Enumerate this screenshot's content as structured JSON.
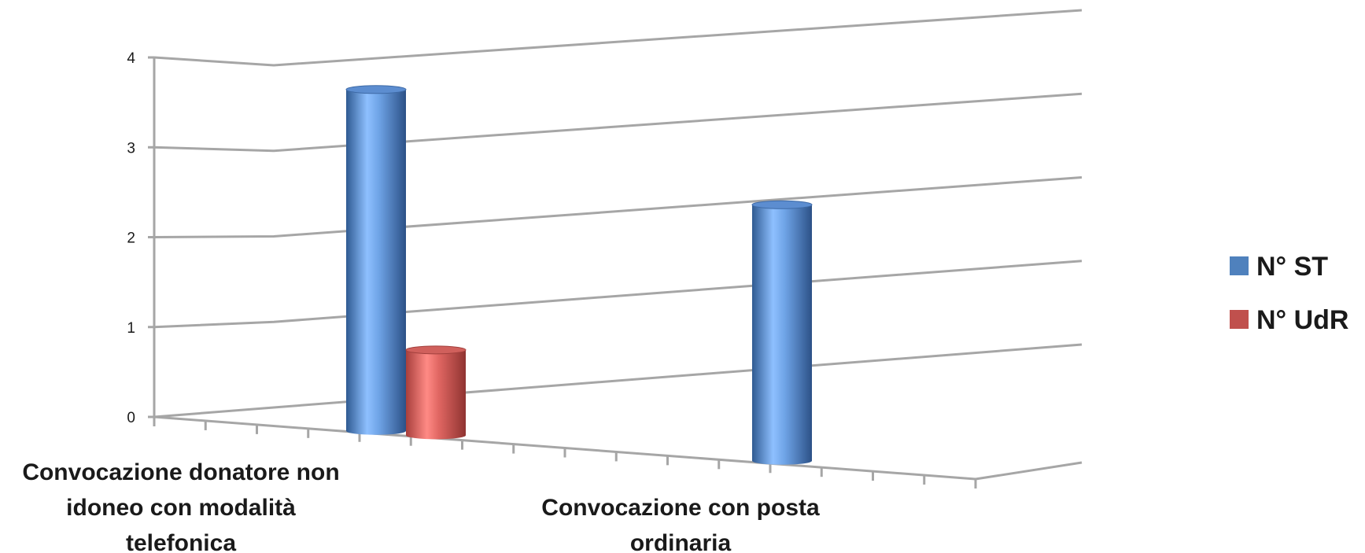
{
  "chart_data": {
    "type": "bar",
    "style": "3d-cylinder",
    "categories": [
      [
        "Convocazione donatore non",
        "idoneo con modalità",
        "telefonica"
      ],
      [
        "Convocazione con posta",
        "ordinaria"
      ]
    ],
    "series": [
      {
        "name": "N° ST",
        "values": [
          4,
          3
        ],
        "color": "#4f81bd"
      },
      {
        "name": "N° UdR",
        "values": [
          1,
          0
        ],
        "color": "#c0504d"
      }
    ],
    "yticks": [
      "0",
      "1",
      "2",
      "3",
      "4"
    ],
    "ylim": [
      0,
      4
    ],
    "grid": true,
    "legend": "right",
    "title": "",
    "xlabel": "",
    "ylabel": ""
  }
}
